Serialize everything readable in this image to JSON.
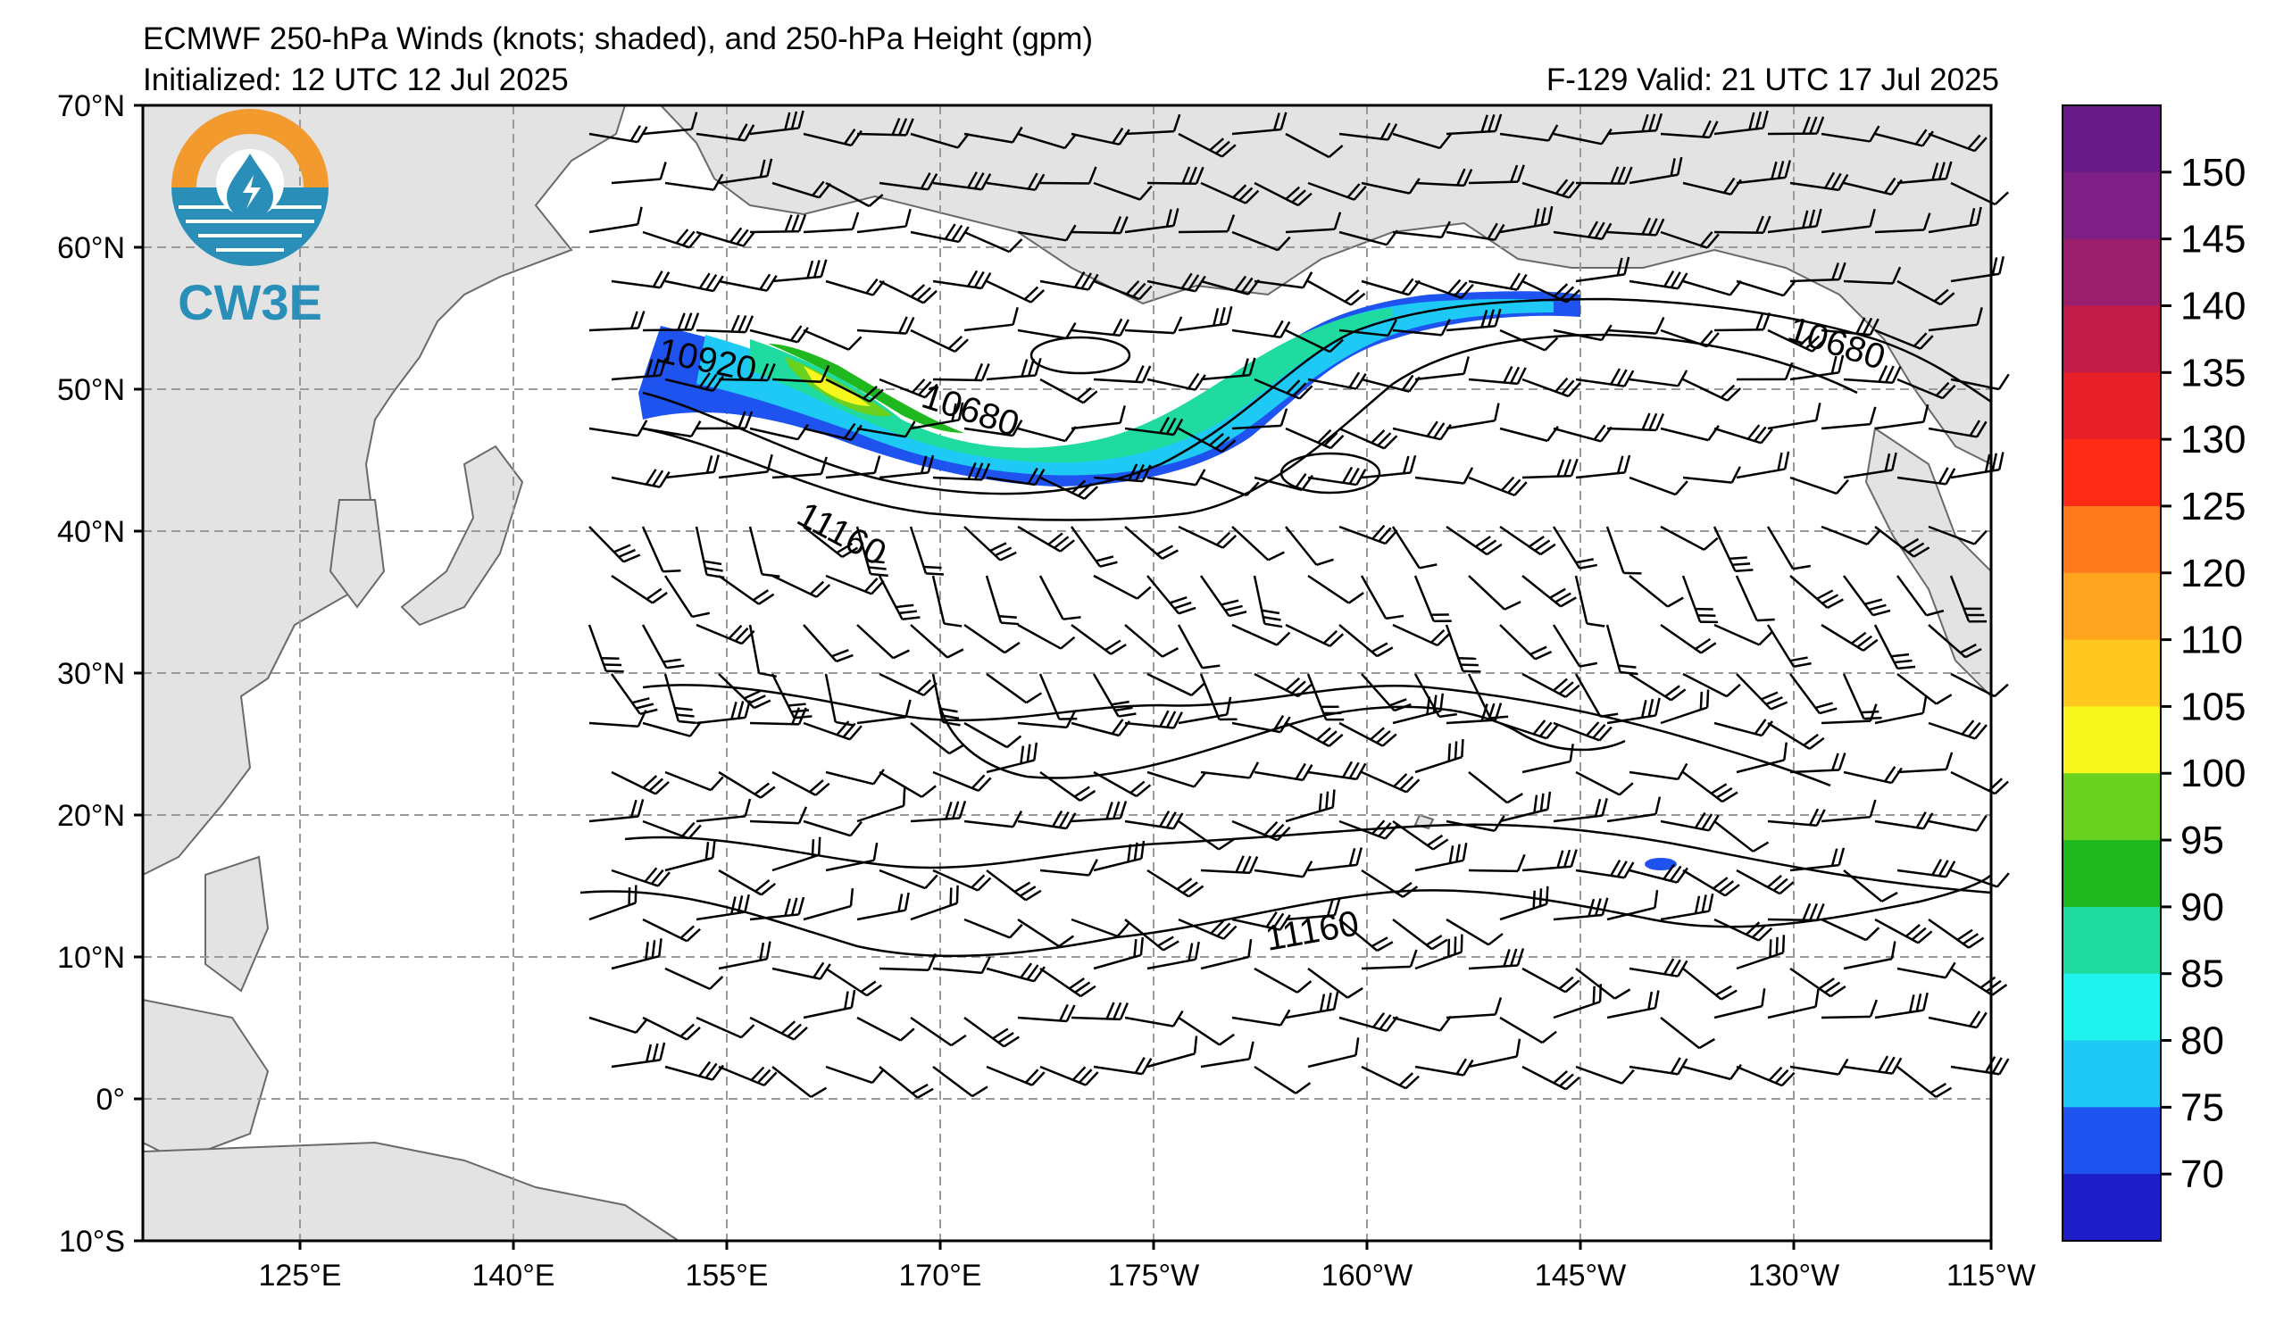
{
  "header": {
    "title": "ECMWF 250-hPa Winds (knots; shaded), and 250-hPa Height (gpm)",
    "init": "Initialized: 12 UTC 12 Jul 2025",
    "valid": "F-129  Valid: 21 UTC 17 Jul 2025"
  },
  "logo": {
    "text": "CW3E",
    "ring_color": "#f29a2e",
    "sea_color": "#2a8fb8"
  },
  "map": {
    "lat_labels": [
      "70°N",
      "60°N",
      "50°N",
      "40°N",
      "30°N",
      "20°N",
      "10°N",
      "0°",
      "10°S"
    ],
    "lon_labels": [
      "125°E",
      "140°E",
      "155°E",
      "170°E",
      "175°W",
      "160°W",
      "145°W",
      "130°W",
      "115°W"
    ],
    "land_color": "#e3e3e3",
    "ocean_color": "#ffffff",
    "contours": [
      {
        "text": "10920"
      },
      {
        "text": "10680"
      },
      {
        "text": "10680"
      },
      {
        "text": "11160"
      },
      {
        "text": "11160"
      }
    ]
  },
  "colorbar": {
    "labels": [
      "150",
      "145",
      "140",
      "135",
      "130",
      "125",
      "120",
      "110",
      "105",
      "100",
      "95",
      "90",
      "85",
      "80",
      "75",
      "70"
    ],
    "colors": [
      "#6a1b8a",
      "#7e1f86",
      "#9c1f6d",
      "#c21d4a",
      "#e8202a",
      "#ff2b16",
      "#ff7a1c",
      "#ffa41e",
      "#ffc81e",
      "#f7f71e",
      "#6ad11e",
      "#1fb81e",
      "#1fdba0",
      "#1ff3ee",
      "#1ec9f5",
      "#1f53f0",
      "#1e1ec8"
    ]
  }
}
